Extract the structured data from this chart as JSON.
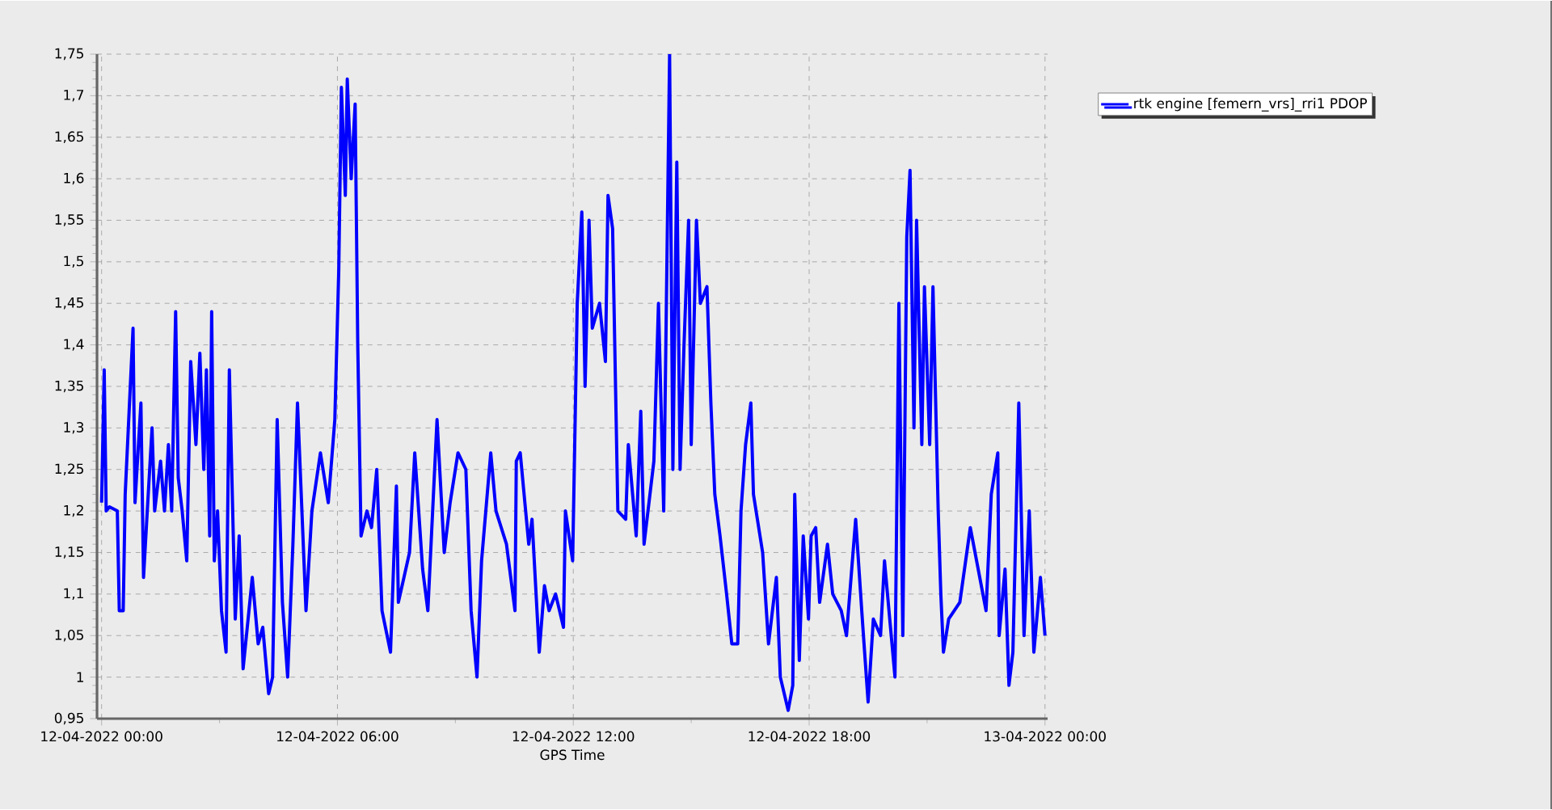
{
  "chart_data": {
    "type": "line",
    "xlabel": "GPS Time",
    "x": [
      "2022-04-12T00:00",
      "2022-04-12T00:04",
      "2022-04-12T00:07",
      "2022-04-12T00:12",
      "2022-04-12T00:24",
      "2022-04-12T00:27",
      "2022-04-12T00:33",
      "2022-04-12T00:36",
      "2022-04-12T00:48",
      "2022-04-12T00:51",
      "2022-04-12T01:00",
      "2022-04-12T01:04",
      "2022-04-12T01:09",
      "2022-04-12T01:17",
      "2022-04-12T01:21",
      "2022-04-12T01:30",
      "2022-04-12T01:36",
      "2022-04-12T01:42",
      "2022-04-12T01:47",
      "2022-04-12T01:53",
      "2022-04-12T01:57",
      "2022-04-12T02:03",
      "2022-04-12T02:10",
      "2022-04-12T02:16",
      "2022-04-12T02:24",
      "2022-04-12T02:30",
      "2022-04-12T02:36",
      "2022-04-12T02:40",
      "2022-04-12T02:45",
      "2022-04-12T02:48",
      "2022-04-12T02:52",
      "2022-04-12T02:57",
      "2022-04-12T03:03",
      "2022-04-12T03:10",
      "2022-04-12T03:15",
      "2022-04-12T03:24",
      "2022-04-12T03:30",
      "2022-04-12T03:36",
      "2022-04-12T03:50",
      "2022-04-12T03:59",
      "2022-04-12T04:06",
      "2022-04-12T04:15",
      "2022-04-12T04:21",
      "2022-04-12T04:28",
      "2022-04-12T04:36",
      "2022-04-12T04:44",
      "2022-04-12T04:52",
      "2022-04-12T04:59",
      "2022-04-12T05:12",
      "2022-04-12T05:21",
      "2022-04-12T05:34",
      "2022-04-12T05:46",
      "2022-04-12T05:56",
      "2022-04-12T06:02",
      "2022-04-12T06:06",
      "2022-04-12T06:12",
      "2022-04-12T06:15",
      "2022-04-12T06:21",
      "2022-04-12T06:27",
      "2022-04-12T06:31",
      "2022-04-12T06:36",
      "2022-04-12T06:45",
      "2022-04-12T06:52",
      "2022-04-12T07:00",
      "2022-04-12T07:08",
      "2022-04-12T07:21",
      "2022-04-12T07:30",
      "2022-04-12T07:33",
      "2022-04-12T07:50",
      "2022-04-12T07:58",
      "2022-04-12T08:10",
      "2022-04-12T08:18",
      "2022-04-12T08:32",
      "2022-04-12T08:43",
      "2022-04-12T08:52",
      "2022-04-12T09:04",
      "2022-04-12T09:16",
      "2022-04-12T09:24",
      "2022-04-12T09:33",
      "2022-04-12T09:40",
      "2022-04-12T09:54",
      "2022-04-12T10:02",
      "2022-04-12T10:18",
      "2022-04-12T10:31",
      "2022-04-12T10:33",
      "2022-04-12T10:39",
      "2022-04-12T10:52",
      "2022-04-12T10:57",
      "2022-04-12T11:08",
      "2022-04-12T11:16",
      "2022-04-12T11:23",
      "2022-04-12T11:33",
      "2022-04-12T11:45",
      "2022-04-12T11:48",
      "2022-04-12T11:59",
      "2022-04-12T12:06",
      "2022-04-12T12:13",
      "2022-04-12T12:18",
      "2022-04-12T12:24",
      "2022-04-12T12:29",
      "2022-04-12T12:40",
      "2022-04-12T12:49",
      "2022-04-12T12:53",
      "2022-04-12T13:00",
      "2022-04-12T13:08",
      "2022-04-12T13:20",
      "2022-04-12T13:24",
      "2022-04-12T13:36",
      "2022-04-12T13:43",
      "2022-04-12T13:48",
      "2022-04-12T14:03",
      "2022-04-12T14:10",
      "2022-04-12T14:18",
      "2022-04-12T14:27",
      "2022-04-12T14:32",
      "2022-04-12T14:38",
      "2022-04-12T14:43",
      "2022-04-12T14:49",
      "2022-04-12T14:56",
      "2022-04-12T15:00",
      "2022-04-12T15:08",
      "2022-04-12T15:14",
      "2022-04-12T15:24",
      "2022-04-12T15:30",
      "2022-04-12T15:36",
      "2022-04-12T15:44",
      "2022-04-12T15:54",
      "2022-04-12T16:02",
      "2022-04-12T16:11",
      "2022-04-12T16:16",
      "2022-04-12T16:23",
      "2022-04-12T16:31",
      "2022-04-12T16:35",
      "2022-04-12T16:49",
      "2022-04-12T16:58",
      "2022-04-12T17:10",
      "2022-04-12T17:16",
      "2022-04-12T17:28",
      "2022-04-12T17:35",
      "2022-04-12T17:38",
      "2022-04-12T17:45",
      "2022-04-12T17:51",
      "2022-04-12T17:59",
      "2022-04-12T18:03",
      "2022-04-12T18:10",
      "2022-04-12T18:16",
      "2022-04-12T18:28",
      "2022-04-12T18:36",
      "2022-04-12T18:49",
      "2022-04-12T18:57",
      "2022-04-12T19:11",
      "2022-04-12T19:22",
      "2022-04-12T19:30",
      "2022-04-12T19:38",
      "2022-04-12T19:49",
      "2022-04-12T19:55",
      "2022-04-12T20:11",
      "2022-04-12T20:17",
      "2022-04-12T20:23",
      "2022-04-12T20:29",
      "2022-04-12T20:34",
      "2022-04-12T20:40",
      "2022-04-12T20:44",
      "2022-04-12T20:52",
      "2022-04-12T20:56",
      "2022-04-12T21:04",
      "2022-04-12T21:09",
      "2022-04-12T21:17",
      "2022-04-12T21:21",
      "2022-04-12T21:25",
      "2022-04-12T21:33",
      "2022-04-12T21:50",
      "2022-04-12T22:06",
      "2022-04-12T22:30",
      "2022-04-12T22:38",
      "2022-04-12T22:48",
      "2022-04-12T22:50",
      "2022-04-12T22:59",
      "2022-04-12T23:05",
      "2022-04-12T23:11",
      "2022-04-12T23:20",
      "2022-04-12T23:28",
      "2022-04-12T23:36",
      "2022-04-12T23:43",
      "2022-04-12T23:53",
      "2022-04-13T00:00"
    ],
    "series": [
      {
        "name": "rtk engine [femern_vrs]_rri1 PDOP",
        "color": "#0000ff",
        "values": [
          1.21,
          1.37,
          1.2,
          1.205,
          1.2,
          1.08,
          1.08,
          1.22,
          1.42,
          1.21,
          1.33,
          1.12,
          1.19,
          1.3,
          1.2,
          1.26,
          1.2,
          1.28,
          1.2,
          1.44,
          1.24,
          1.2,
          1.14,
          1.38,
          1.28,
          1.39,
          1.25,
          1.37,
          1.17,
          1.44,
          1.14,
          1.2,
          1.08,
          1.03,
          1.37,
          1.07,
          1.17,
          1.01,
          1.12,
          1.04,
          1.06,
          0.98,
          1.0,
          1.31,
          1.09,
          1.0,
          1.16,
          1.33,
          1.08,
          1.2,
          1.27,
          1.21,
          1.31,
          1.49,
          1.71,
          1.58,
          1.72,
          1.6,
          1.69,
          1.4,
          1.17,
          1.2,
          1.18,
          1.25,
          1.08,
          1.03,
          1.23,
          1.09,
          1.15,
          1.27,
          1.13,
          1.08,
          1.31,
          1.15,
          1.21,
          1.27,
          1.25,
          1.08,
          1.0,
          1.14,
          1.27,
          1.2,
          1.16,
          1.08,
          1.26,
          1.27,
          1.16,
          1.19,
          1.03,
          1.11,
          1.08,
          1.1,
          1.06,
          1.2,
          1.14,
          1.45,
          1.56,
          1.35,
          1.55,
          1.42,
          1.45,
          1.38,
          1.58,
          1.54,
          1.2,
          1.19,
          1.28,
          1.17,
          1.32,
          1.16,
          1.26,
          1.45,
          1.2,
          1.75,
          1.25,
          1.62,
          1.25,
          1.4,
          1.55,
          1.28,
          1.55,
          1.45,
          1.47,
          1.33,
          1.22,
          1.17,
          1.1,
          1.04,
          1.04,
          1.2,
          1.28,
          1.33,
          1.22,
          1.15,
          1.04,
          1.12,
          1.0,
          0.96,
          0.99,
          1.22,
          1.02,
          1.17,
          1.07,
          1.17,
          1.18,
          1.09,
          1.16,
          1.1,
          1.08,
          1.05,
          1.19,
          1.06,
          0.97,
          1.07,
          1.05,
          1.14,
          1.0,
          1.45,
          1.05,
          1.53,
          1.61,
          1.3,
          1.55,
          1.28,
          1.47,
          1.28,
          1.47,
          1.2,
          1.1,
          1.03,
          1.07,
          1.09,
          1.18,
          1.08,
          1.22,
          1.27,
          1.05,
          1.13,
          0.99,
          1.03,
          1.33,
          1.05,
          1.2,
          1.03,
          1.12,
          1.05
        ]
      }
    ],
    "xlim": [
      "2022-04-11T23:53",
      "2022-04-13T00:04"
    ],
    "xticks": [
      {
        "value": "2022-04-12T00:00",
        "label": "12-04-2022 00:00"
      },
      {
        "value": "2022-04-12T06:00",
        "label": "12-04-2022 06:00"
      },
      {
        "value": "2022-04-12T12:00",
        "label": "12-04-2022 12:00"
      },
      {
        "value": "2022-04-12T18:00",
        "label": "12-04-2022 18:00"
      },
      {
        "value": "2022-04-13T00:00",
        "label": "13-04-2022 00:00"
      }
    ],
    "ylim": [
      0.95,
      1.75
    ],
    "yticks": [
      {
        "value": 0.95,
        "label": "0,95"
      },
      {
        "value": 1,
        "label": "1"
      },
      {
        "value": 1.05,
        "label": "1,05"
      },
      {
        "value": 1.1,
        "label": "1,1"
      },
      {
        "value": 1.15,
        "label": "1,15"
      },
      {
        "value": 1.2,
        "label": "1,2"
      },
      {
        "value": 1.25,
        "label": "1,25"
      },
      {
        "value": 1.3,
        "label": "1,3"
      },
      {
        "value": 1.35,
        "label": "1,35"
      },
      {
        "value": 1.4,
        "label": "1,4"
      },
      {
        "value": 1.45,
        "label": "1,45"
      },
      {
        "value": 1.5,
        "label": "1,5"
      },
      {
        "value": 1.55,
        "label": "1,55"
      },
      {
        "value": 1.6,
        "label": "1,6"
      },
      {
        "value": 1.65,
        "label": "1,65"
      },
      {
        "value": 1.7,
        "label": "1,7"
      },
      {
        "value": 1.75,
        "label": "1,75"
      }
    ],
    "grid": true,
    "legend": "top right",
    "marker": "none",
    "line_style": "solid"
  }
}
